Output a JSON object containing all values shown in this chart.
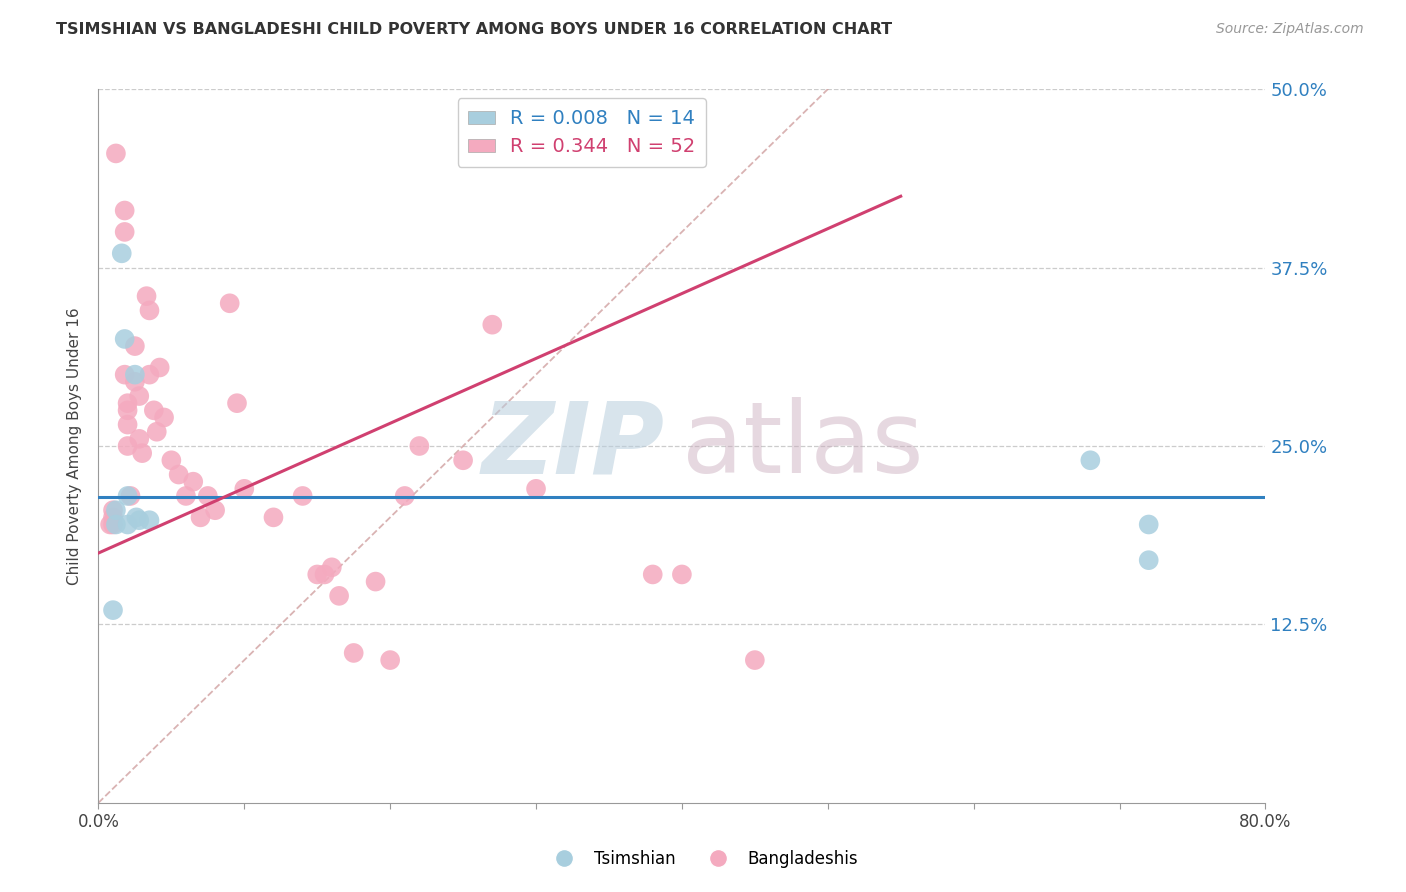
{
  "title": "TSIMSHIAN VS BANGLADESHI CHILD POVERTY AMONG BOYS UNDER 16 CORRELATION CHART",
  "source": "Source: ZipAtlas.com",
  "ylabel": "Child Poverty Among Boys Under 16",
  "xmin": 0.0,
  "xmax": 0.8,
  "ymin": 0.0,
  "ymax": 0.5,
  "legend_blue_r": "0.008",
  "legend_blue_n": "14",
  "legend_pink_r": "0.344",
  "legend_pink_n": "52",
  "blue_color": "#A8CEDE",
  "pink_color": "#F4AABF",
  "blue_line_color": "#3080C0",
  "pink_line_color": "#D04070",
  "diag_color": "#D0A0A0",
  "grid_color": "#CCCCCC",
  "blue_regression": [
    0.0,
    0.214,
    0.8,
    0.214
  ],
  "pink_regression": [
    0.0,
    0.175,
    0.55,
    0.425
  ],
  "blue_x": [
    0.012,
    0.012,
    0.016,
    0.018,
    0.02,
    0.02,
    0.025,
    0.026,
    0.028,
    0.035,
    0.68,
    0.72,
    0.72,
    0.01
  ],
  "blue_y": [
    0.205,
    0.195,
    0.385,
    0.325,
    0.215,
    0.195,
    0.3,
    0.2,
    0.198,
    0.198,
    0.24,
    0.195,
    0.17,
    0.135
  ],
  "pink_x": [
    0.008,
    0.01,
    0.01,
    0.01,
    0.012,
    0.018,
    0.018,
    0.018,
    0.02,
    0.02,
    0.02,
    0.02,
    0.022,
    0.025,
    0.025,
    0.028,
    0.028,
    0.03,
    0.033,
    0.035,
    0.035,
    0.038,
    0.04,
    0.042,
    0.045,
    0.05,
    0.055,
    0.06,
    0.065,
    0.07,
    0.075,
    0.08,
    0.09,
    0.095,
    0.1,
    0.12,
    0.14,
    0.15,
    0.155,
    0.16,
    0.165,
    0.175,
    0.19,
    0.2,
    0.21,
    0.22,
    0.25,
    0.27,
    0.3,
    0.38,
    0.4,
    0.45
  ],
  "pink_y": [
    0.195,
    0.195,
    0.205,
    0.2,
    0.455,
    0.415,
    0.4,
    0.3,
    0.28,
    0.275,
    0.265,
    0.25,
    0.215,
    0.32,
    0.295,
    0.285,
    0.255,
    0.245,
    0.355,
    0.345,
    0.3,
    0.275,
    0.26,
    0.305,
    0.27,
    0.24,
    0.23,
    0.215,
    0.225,
    0.2,
    0.215,
    0.205,
    0.35,
    0.28,
    0.22,
    0.2,
    0.215,
    0.16,
    0.16,
    0.165,
    0.145,
    0.105,
    0.155,
    0.1,
    0.215,
    0.25,
    0.24,
    0.335,
    0.22,
    0.16,
    0.16,
    0.1
  ]
}
